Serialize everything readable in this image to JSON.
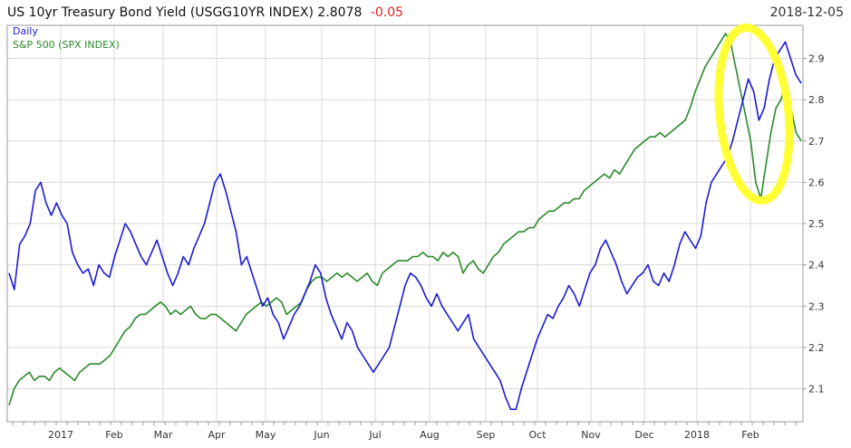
{
  "header": {
    "title": "US 10yr Treasury Bond Yield (USGG10YR INDEX) 2.8078",
    "change": "-0.05",
    "date": "2018-12-05"
  },
  "legend": {
    "daily_label": "Daily",
    "spx_label": "S&P 500 (SPX INDEX)"
  },
  "colors": {
    "yield_line": "#1a1ad6",
    "spx_line": "#2a8a2a",
    "negative_change": "#e02020",
    "highlight": "#ffff33",
    "grid": "#d8d8d8"
  },
  "chart_data": {
    "type": "line",
    "x_tick_labels": [
      "2017",
      "Feb",
      "Mar",
      "Apr",
      "May",
      "Jun",
      "Jul",
      "Aug",
      "Sep",
      "Oct",
      "Nov",
      "Dec",
      "2018",
      "Feb"
    ],
    "y_tick_labels": [
      "2.1",
      "2.2",
      "2.3",
      "2.4",
      "2.5",
      "2.6",
      "2.7",
      "2.8",
      "2.9"
    ],
    "y_ticks": [
      2.1,
      2.2,
      2.3,
      2.4,
      2.5,
      2.6,
      2.7,
      2.8,
      2.9
    ],
    "ylim": [
      2.02,
      2.98
    ],
    "grid": true,
    "legend_position": "top-left",
    "series": [
      {
        "name": "Daily",
        "axis": "right",
        "values": [
          2.38,
          2.34,
          2.45,
          2.47,
          2.5,
          2.58,
          2.6,
          2.55,
          2.52,
          2.55,
          2.52,
          2.5,
          2.43,
          2.4,
          2.38,
          2.39,
          2.35,
          2.4,
          2.38,
          2.37,
          2.42,
          2.46,
          2.5,
          2.48,
          2.45,
          2.42,
          2.4,
          2.43,
          2.46,
          2.42,
          2.38,
          2.35,
          2.38,
          2.42,
          2.4,
          2.44,
          2.47,
          2.5,
          2.55,
          2.6,
          2.62,
          2.58,
          2.53,
          2.48,
          2.4,
          2.42,
          2.38,
          2.34,
          2.3,
          2.32,
          2.28,
          2.26,
          2.22,
          2.25,
          2.28,
          2.3,
          2.33,
          2.36,
          2.4,
          2.38,
          2.32,
          2.28,
          2.25,
          2.22,
          2.26,
          2.24,
          2.2,
          2.18,
          2.16,
          2.14,
          2.16,
          2.18,
          2.2,
          2.25,
          2.3,
          2.35,
          2.38,
          2.37,
          2.35,
          2.32,
          2.3,
          2.33,
          2.3,
          2.28,
          2.26,
          2.24,
          2.26,
          2.28,
          2.22,
          2.2,
          2.18,
          2.16,
          2.14,
          2.12,
          2.08,
          2.05,
          2.05,
          2.1,
          2.14,
          2.18,
          2.22,
          2.25,
          2.28,
          2.27,
          2.3,
          2.32,
          2.35,
          2.33,
          2.3,
          2.34,
          2.38,
          2.4,
          2.44,
          2.46,
          2.43,
          2.4,
          2.36,
          2.33,
          2.35,
          2.37,
          2.38,
          2.4,
          2.36,
          2.35,
          2.38,
          2.36,
          2.4,
          2.45,
          2.48,
          2.46,
          2.44,
          2.47,
          2.55,
          2.6,
          2.62,
          2.64,
          2.66,
          2.7,
          2.75,
          2.8,
          2.85,
          2.82,
          2.75,
          2.78,
          2.85,
          2.9,
          2.92,
          2.94,
          2.9,
          2.86,
          2.84
        ]
      },
      {
        "name": "S&P 500 (SPX INDEX)",
        "axis": "left",
        "values": [
          2.06,
          2.1,
          2.12,
          2.13,
          2.14,
          2.12,
          2.13,
          2.13,
          2.12,
          2.14,
          2.15,
          2.14,
          2.13,
          2.12,
          2.14,
          2.15,
          2.16,
          2.16,
          2.16,
          2.17,
          2.18,
          2.2,
          2.22,
          2.24,
          2.25,
          2.27,
          2.28,
          2.28,
          2.29,
          2.3,
          2.31,
          2.3,
          2.28,
          2.29,
          2.28,
          2.29,
          2.3,
          2.28,
          2.27,
          2.27,
          2.28,
          2.28,
          2.27,
          2.26,
          2.25,
          2.24,
          2.26,
          2.28,
          2.29,
          2.3,
          2.31,
          2.3,
          2.31,
          2.32,
          2.31,
          2.28,
          2.29,
          2.3,
          2.31,
          2.34,
          2.36,
          2.37,
          2.37,
          2.36,
          2.37,
          2.38,
          2.37,
          2.38,
          2.37,
          2.36,
          2.37,
          2.38,
          2.36,
          2.35,
          2.38,
          2.39,
          2.4,
          2.41,
          2.41,
          2.41,
          2.42,
          2.42,
          2.43,
          2.42,
          2.42,
          2.41,
          2.43,
          2.42,
          2.43,
          2.42,
          2.38,
          2.4,
          2.41,
          2.39,
          2.38,
          2.4,
          2.42,
          2.43,
          2.45,
          2.46,
          2.47,
          2.48,
          2.48,
          2.49,
          2.49,
          2.51,
          2.52,
          2.53,
          2.53,
          2.54,
          2.55,
          2.55,
          2.56,
          2.56,
          2.58,
          2.59,
          2.6,
          2.61,
          2.62,
          2.61,
          2.63,
          2.62,
          2.64,
          2.66,
          2.68,
          2.69,
          2.7,
          2.71,
          2.71,
          2.72,
          2.71,
          2.72,
          2.73,
          2.74,
          2.75,
          2.78,
          2.82,
          2.85,
          2.88,
          2.9,
          2.92,
          2.94,
          2.96,
          2.94,
          2.88,
          2.82,
          2.76,
          2.7,
          2.6,
          2.56,
          2.64,
          2.72,
          2.78,
          2.8,
          2.84,
          2.78,
          2.72,
          2.7
        ]
      }
    ]
  }
}
